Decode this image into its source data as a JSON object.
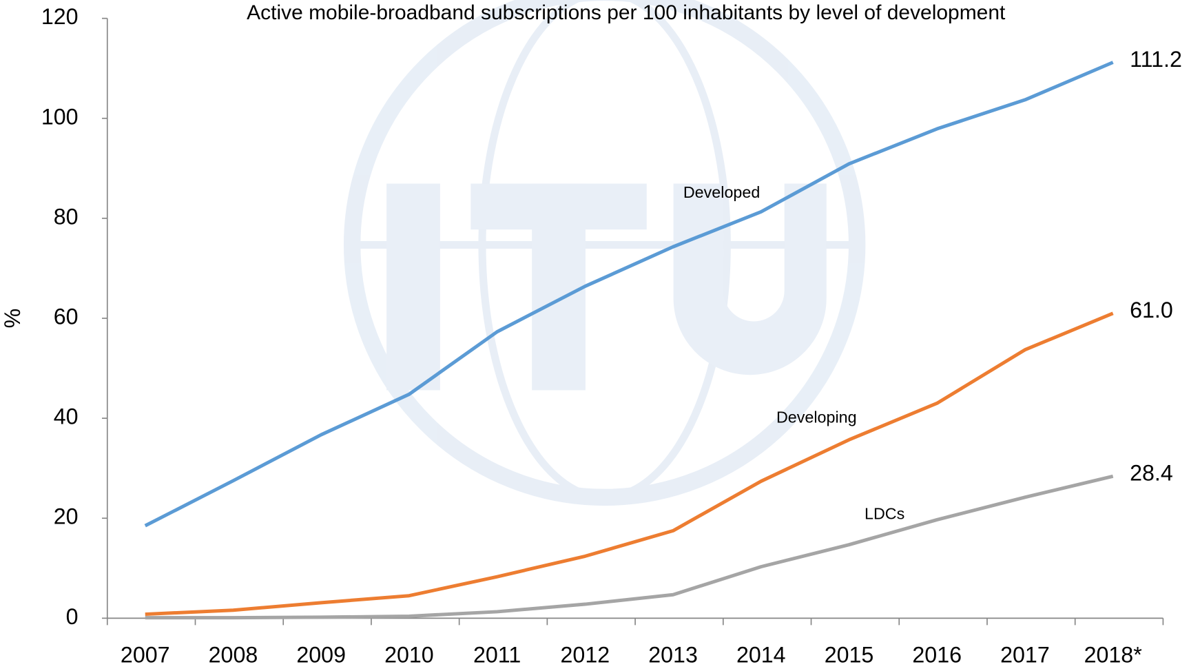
{
  "chart_data": {
    "type": "line",
    "title": "Active mobile-broadband subscriptions per 100 inhabitants by level of development",
    "y_label": "%",
    "categories": [
      "2007",
      "2008",
      "2009",
      "2010",
      "2011",
      "2012",
      "2013",
      "2014",
      "2015",
      "2016",
      "2017",
      "2018*"
    ],
    "series": [
      {
        "name": "Developed",
        "color": "#5b9bd5",
        "values": [
          18.5,
          27.5,
          36.7,
          44.8,
          57.3,
          66.4,
          74.3,
          81.3,
          90.9,
          97.9,
          103.7,
          111.2
        ],
        "value_labels": [
          null,
          null,
          null,
          null,
          null,
          null,
          null,
          null,
          null,
          null,
          null,
          "111.2"
        ]
      },
      {
        "name": "Developing",
        "color": "#ed7d31",
        "values": [
          0.8,
          1.6,
          3.1,
          4.5,
          8.3,
          12.4,
          17.5,
          27.4,
          35.7,
          43.0,
          53.7,
          61.0
        ],
        "value_labels": [
          null,
          null,
          null,
          null,
          null,
          null,
          null,
          null,
          null,
          null,
          null,
          "61.0"
        ]
      },
      {
        "name": "LDCs",
        "color": "#a5a5a5",
        "values": [
          0.1,
          0.1,
          0.2,
          0.4,
          1.3,
          2.8,
          4.7,
          10.3,
          14.7,
          19.7,
          24.2,
          28.4
        ],
        "value_labels": [
          null,
          null,
          null,
          null,
          null,
          null,
          null,
          null,
          null,
          null,
          null,
          "28.4"
        ]
      }
    ],
    "ylim": [
      0,
      120
    ],
    "yticks": [
      0,
      20,
      40,
      60,
      80,
      100,
      120
    ],
    "grid": false
  }
}
